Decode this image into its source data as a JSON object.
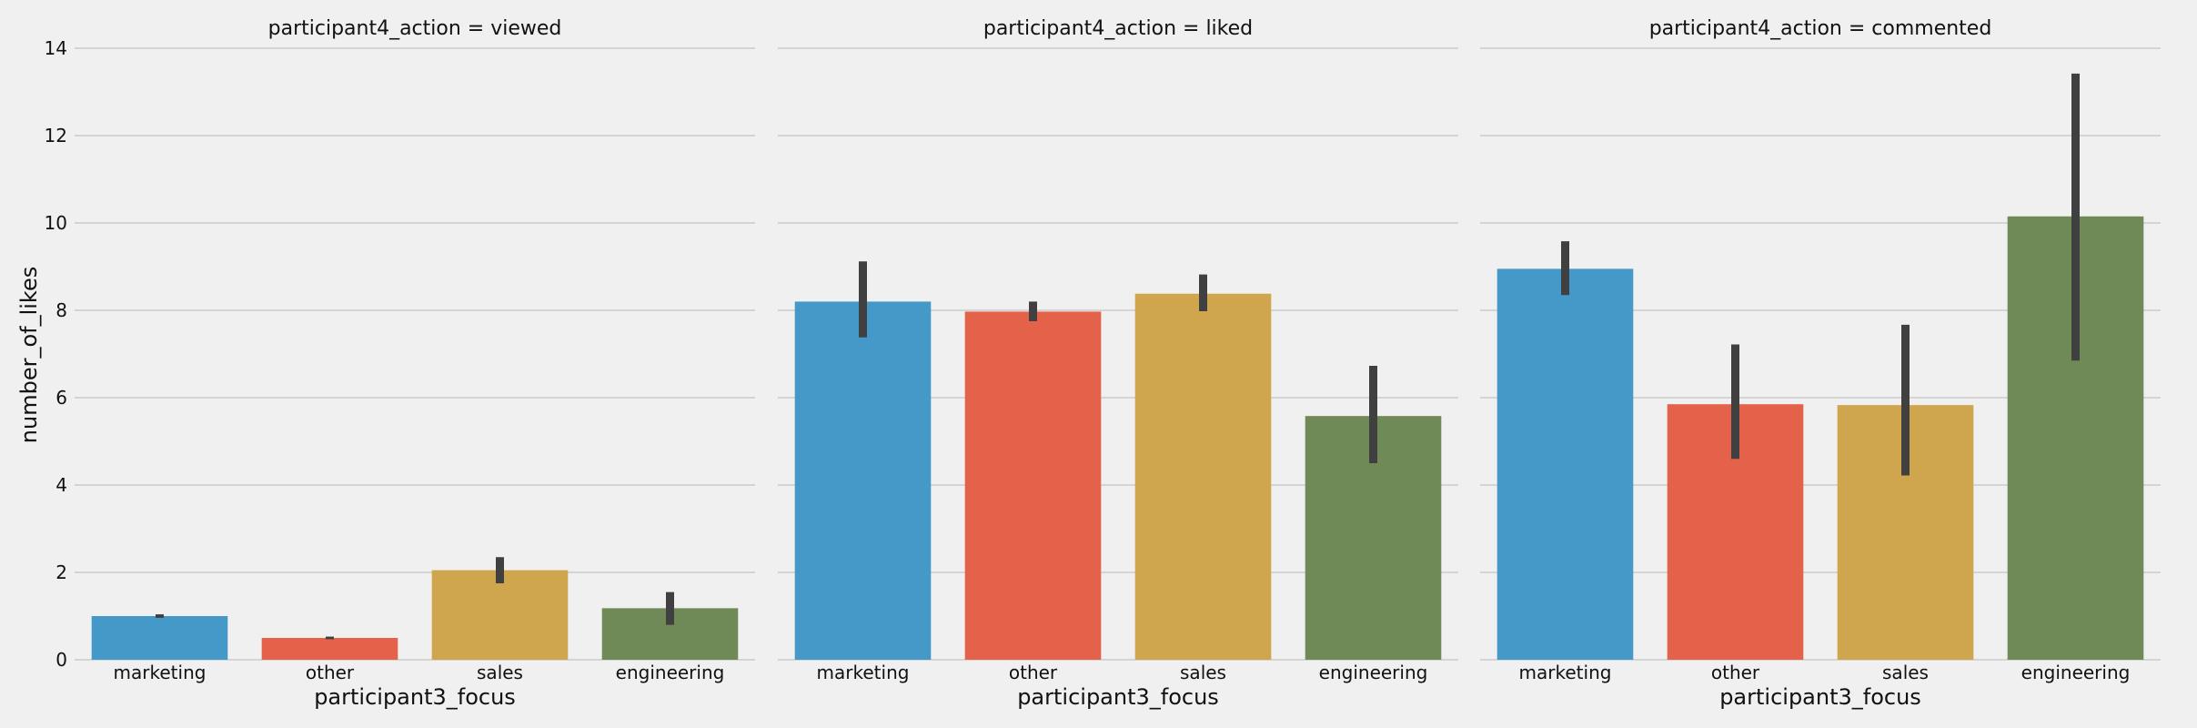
{
  "chart_data": {
    "type": "bar",
    "facet_variable": "participant4_action",
    "xlabel": "participant3_focus",
    "ylabel": "number_of_likes",
    "ylim": [
      0,
      14
    ],
    "yticks": [
      0,
      2,
      4,
      6,
      8,
      10,
      12,
      14
    ],
    "categories": [
      "marketing",
      "other",
      "sales",
      "engineering"
    ],
    "colors": [
      "#4599c9",
      "#e4614a",
      "#cfa54d",
      "#6f8a57"
    ],
    "errorbar_color": "#404040",
    "grid": true,
    "panels": [
      {
        "title": "participant4_action = viewed",
        "values": [
          1.0,
          0.5,
          2.05,
          1.18
        ],
        "ci": [
          [
            0.96,
            1.04
          ],
          [
            0.47,
            0.53
          ],
          [
            1.75,
            2.35
          ],
          [
            0.8,
            1.55
          ]
        ]
      },
      {
        "title": "participant4_action = liked",
        "values": [
          8.2,
          7.97,
          8.38,
          5.58
        ],
        "ci": [
          [
            7.38,
            9.12
          ],
          [
            7.75,
            8.2
          ],
          [
            7.98,
            8.82
          ],
          [
            4.5,
            6.73
          ]
        ]
      },
      {
        "title": "participant4_action = commented",
        "values": [
          8.95,
          5.85,
          5.83,
          10.15
        ],
        "ci": [
          [
            8.35,
            9.58
          ],
          [
            4.6,
            7.22
          ],
          [
            4.22,
            7.67
          ],
          [
            6.85,
            13.42
          ]
        ]
      }
    ]
  }
}
